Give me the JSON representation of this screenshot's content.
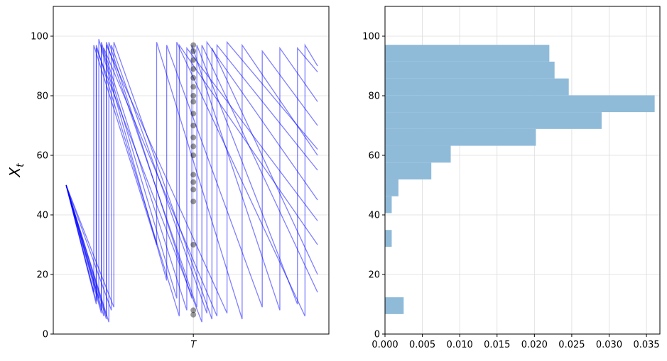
{
  "chart_data": [
    {
      "type": "line",
      "ylabel": "X",
      "ylabel_subscript": "t",
      "xlim": [
        -0.051,
        1.045
      ],
      "ylim": [
        0,
        110
      ],
      "xticks": [
        {
          "value": 0.506,
          "label": "T"
        }
      ],
      "yticks": [
        0,
        20,
        40,
        60,
        80,
        100
      ],
      "grid": true,
      "line_color": "#0000ff",
      "line_alpha": 0.5,
      "series": [
        {
          "x": [
            0,
            0.12,
            0.12,
            0.45,
            0.45,
            1
          ],
          "values": [
            50,
            10,
            97,
            6,
            97,
            30
          ]
        },
        {
          "x": [
            0,
            0.14,
            0.14,
            0.48,
            0.48,
            1
          ],
          "values": [
            50,
            7,
            98,
            8,
            96,
            38
          ]
        },
        {
          "x": [
            0,
            0.16,
            0.16,
            0.52,
            0.52,
            0.92,
            0.92,
            1
          ],
          "values": [
            50,
            5,
            98,
            9,
            97,
            10,
            96,
            88
          ]
        },
        {
          "x": [
            0,
            0.18,
            0.18,
            0.56,
            0.56,
            1
          ],
          "values": [
            50,
            8,
            97,
            7,
            98,
            45
          ]
        },
        {
          "x": [
            0,
            0.13,
            0.13,
            0.4,
            0.4,
            0.78,
            0.78,
            1
          ],
          "values": [
            50,
            12,
            99,
            18,
            97,
            9,
            95,
            70
          ]
        },
        {
          "x": [
            0,
            0.15,
            0.15,
            0.6,
            0.6,
            1
          ],
          "values": [
            50,
            6,
            96,
            6,
            97,
            55
          ]
        },
        {
          "x": [
            0,
            0.17,
            0.17,
            0.5,
            0.5,
            0.85,
            0.85,
            1
          ],
          "values": [
            50,
            4,
            98,
            12,
            97,
            8,
            96,
            78
          ]
        },
        {
          "x": [
            0,
            0.11,
            0.11,
            0.36,
            0.36,
            0.7,
            0.7,
            1
          ],
          "values": [
            50,
            14,
            97,
            30,
            98,
            5,
            97,
            60
          ]
        },
        {
          "x": [
            0,
            0.19,
            0.19,
            0.58,
            0.58,
            1
          ],
          "values": [
            50,
            9,
            98,
            5,
            96,
            20
          ]
        },
        {
          "x": [
            0,
            0.14,
            0.14,
            0.44,
            0.44,
            0.95,
            0.95,
            1
          ],
          "values": [
            50,
            8,
            97,
            12,
            98,
            6,
            97,
            90
          ]
        },
        {
          "x": [
            0,
            0.16,
            0.16,
            0.64,
            0.64,
            1
          ],
          "values": [
            50,
            6,
            97,
            7,
            98,
            62
          ]
        },
        {
          "x": [
            0,
            0.12,
            0.12,
            0.54,
            0.54,
            1
          ],
          "values": [
            50,
            11,
            96,
            4,
            97,
            14
          ]
        }
      ],
      "points": {
        "color": "#000000",
        "alpha": 0.4,
        "x": [
          0.506,
          0.506,
          0.506,
          0.506,
          0.506,
          0.506,
          0.506,
          0.506,
          0.506,
          0.506,
          0.506,
          0.506,
          0.506,
          0.506,
          0.506,
          0.506,
          0.506,
          0.506,
          0.506,
          0.506
        ],
        "values": [
          6.5,
          8,
          30,
          44.5,
          48.5,
          51,
          53.5,
          60,
          63,
          66,
          70,
          74,
          78,
          80,
          83,
          86,
          89,
          92,
          95,
          97
        ]
      }
    },
    {
      "type": "histogram",
      "orientation": "horizontal",
      "xlim": [
        0,
        0.0368
      ],
      "ylim": [
        0,
        110
      ],
      "xticks": [
        {
          "value": 0,
          "label": "0.000"
        },
        {
          "value": 0.005,
          "label": "0.005"
        },
        {
          "value": 0.01,
          "label": "0.010"
        },
        {
          "value": 0.015,
          "label": "0.015"
        },
        {
          "value": 0.02,
          "label": "0.020"
        },
        {
          "value": 0.025,
          "label": "0.025"
        },
        {
          "value": 0.03,
          "label": "0.030"
        },
        {
          "value": 0.035,
          "label": "0.035"
        }
      ],
      "yticks": [
        0,
        20,
        40,
        60,
        80,
        100
      ],
      "grid": true,
      "color": "#8fbbd9",
      "bins": [
        6.7,
        12.35,
        18.0,
        23.65,
        29.3,
        34.95,
        40.6,
        46.25,
        51.9,
        57.55,
        63.2,
        68.85,
        74.5,
        80.15,
        85.8,
        91.45,
        97.1
      ],
      "values": [
        0.0025,
        0,
        0,
        0,
        0.0009,
        0,
        0.0009,
        0.0018,
        0.0062,
        0.0088,
        0.0202,
        0.029,
        0.0361,
        0.0246,
        0.0227,
        0.022
      ]
    }
  ]
}
